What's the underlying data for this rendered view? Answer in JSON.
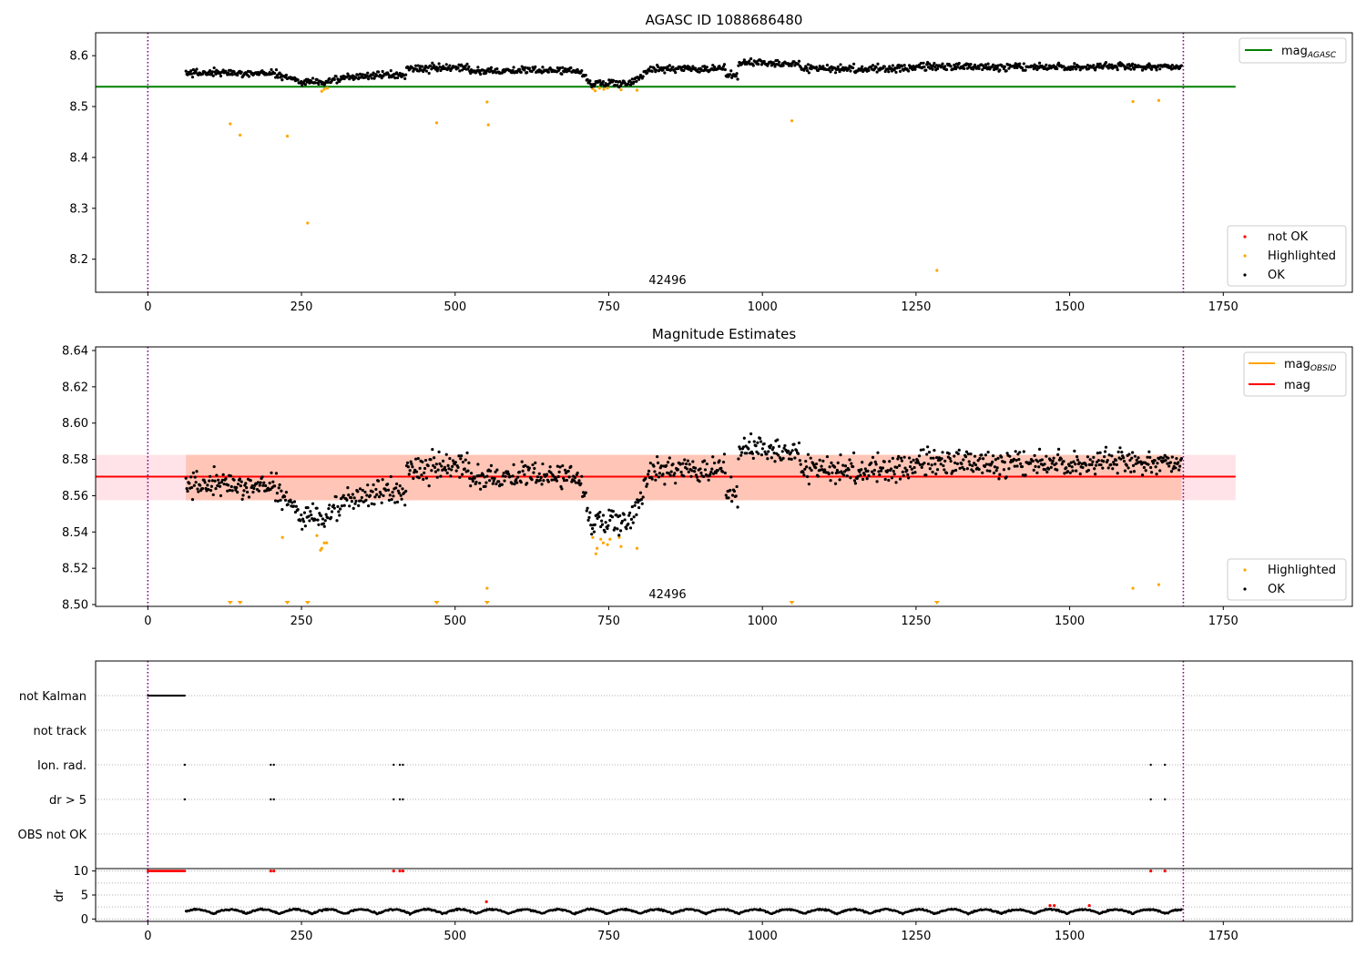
{
  "chart_data": [
    {
      "type": "scatter",
      "title": "AGASC ID 1088686480",
      "xlabel": "",
      "ylabel": "",
      "xlim": [
        -85,
        1960
      ],
      "ylim": [
        8.135,
        8.645
      ],
      "xticks": [
        0,
        250,
        500,
        750,
        1000,
        1250,
        1500,
        1750
      ],
      "yticks": [
        8.2,
        8.3,
        8.4,
        8.5,
        8.6
      ],
      "annotation": "42496",
      "vlines": [
        0,
        1685
      ],
      "lines": [
        {
          "name": "mag_AGASC",
          "label_main": "mag",
          "label_sub": "AGASC",
          "y": 8.539,
          "x_range": [
            -85,
            1770
          ],
          "color": "#008000"
        }
      ],
      "legend_lines": {
        "position": "upper-right"
      },
      "legend_points": {
        "position": "lower-right"
      },
      "series": [
        {
          "name": "not OK",
          "color": "#ff0000",
          "points": []
        },
        {
          "name": "Highlighted",
          "color": "#ffa500",
          "points": [
            [
              134,
              8.466
            ],
            [
              150,
              8.444
            ],
            [
              227,
              8.442
            ],
            [
              260,
              8.271
            ],
            [
              283,
              8.53
            ],
            [
              287,
              8.534
            ],
            [
              292,
              8.536
            ],
            [
              470,
              8.468
            ],
            [
              552,
              8.509
            ],
            [
              554,
              8.464
            ],
            [
              724,
              8.535
            ],
            [
              728,
              8.531
            ],
            [
              735,
              8.536
            ],
            [
              742,
              8.534
            ],
            [
              748,
              8.536
            ],
            [
              770,
              8.533
            ],
            [
              796,
              8.532
            ],
            [
              1048,
              8.472
            ],
            [
              1284,
              8.178
            ],
            [
              1603,
              8.51
            ],
            [
              1645,
              8.512
            ]
          ]
        },
        {
          "name": "OK",
          "color": "#000000",
          "points": []
        }
      ]
    },
    {
      "type": "scatter",
      "title": "Magnitude Estimates",
      "xlabel": "",
      "ylabel": "",
      "xlim": [
        -85,
        1960
      ],
      "ylim": [
        8.499,
        8.642
      ],
      "xticks": [
        0,
        250,
        500,
        750,
        1000,
        1250,
        1500,
        1750
      ],
      "yticks": [
        8.5,
        8.52,
        8.54,
        8.56,
        8.58,
        8.6,
        8.62,
        8.64
      ],
      "annotation": "42496",
      "vlines": [
        0,
        1685
      ],
      "bands": [
        {
          "y": [
            8.5575,
            8.5825
          ],
          "x_range": [
            -85,
            1770
          ],
          "color": "#ffc0cb"
        },
        {
          "y": [
            8.5575,
            8.5825
          ],
          "x_range": [
            62,
            1682
          ],
          "color": "#ffa07a"
        }
      ],
      "lines": [
        {
          "name": "mag_OBSID",
          "label_main": "mag",
          "label_sub": "OBSID",
          "y": 8.5705,
          "x_range": [
            62,
            1682
          ],
          "color": "#ffa500"
        },
        {
          "name": "mag",
          "label_main": "mag",
          "label_sub": "",
          "y": 8.5705,
          "x_range": [
            -85,
            1770
          ],
          "color": "#ff0000"
        }
      ],
      "legend_lines": {
        "position": "upper-right"
      },
      "legend_points": {
        "position": "lower-right"
      },
      "series": [
        {
          "name": "Highlighted",
          "color": "#ffa500",
          "points": [
            [
              219,
              8.537
            ],
            [
              275,
              8.538
            ],
            [
              281,
              8.53
            ],
            [
              283,
              8.531
            ],
            [
              287,
              8.534
            ],
            [
              291,
              8.534
            ],
            [
              552,
              8.509
            ],
            [
              724,
              8.537
            ],
            [
              729,
              8.528
            ],
            [
              731,
              8.531
            ],
            [
              737,
              8.536
            ],
            [
              741,
              8.534
            ],
            [
              748,
              8.533
            ],
            [
              752,
              8.536
            ],
            [
              767,
              8.537
            ],
            [
              770,
              8.532
            ],
            [
              796,
              8.531
            ],
            [
              1603,
              8.509
            ],
            [
              1645,
              8.511
            ]
          ]
        },
        {
          "name": "OK",
          "color": "#000000",
          "points": []
        }
      ],
      "limit_markers": {
        "y": 8.5,
        "x": [
          134,
          150,
          227,
          260,
          470,
          552,
          1048,
          1284
        ],
        "color": "#ffa500"
      }
    },
    {
      "type": "scatter",
      "title": "",
      "xlabel": "",
      "xlim": [
        -85,
        1960
      ],
      "xticks": [
        0,
        250,
        500,
        750,
        1000,
        1250,
        1500,
        1750
      ],
      "vlines": [
        0,
        1685
      ],
      "flag_rows": [
        "not Kalman",
        "not track",
        "Ion. rad.",
        "dr > 5",
        "OBS not OK"
      ],
      "flags": {
        "not Kalman": {
          "x_range": [
            0,
            60
          ]
        },
        "not track": {
          "x": []
        },
        "Ion. rad.": {
          "x": [
            60,
            200,
            205,
            400,
            410,
            415,
            1632,
            1655
          ]
        },
        "dr > 5": {
          "x": [
            60,
            200,
            205,
            400,
            410,
            415,
            1632,
            1655
          ]
        },
        "OBS not OK": {
          "x": []
        }
      },
      "dr": {
        "ylabel": "dr",
        "ylim": [
          -0.5,
          10.5
        ],
        "yticks": [
          0,
          5,
          10
        ],
        "clip": 10,
        "red_clipped_x": [
          200,
          205,
          400,
          410,
          415,
          1632,
          1655
        ],
        "red_points": [
          [
            551,
            3.6
          ],
          [
            1468,
            2.8
          ],
          [
            1475,
            2.8
          ],
          [
            1532,
            2.8
          ]
        ]
      }
    }
  ]
}
